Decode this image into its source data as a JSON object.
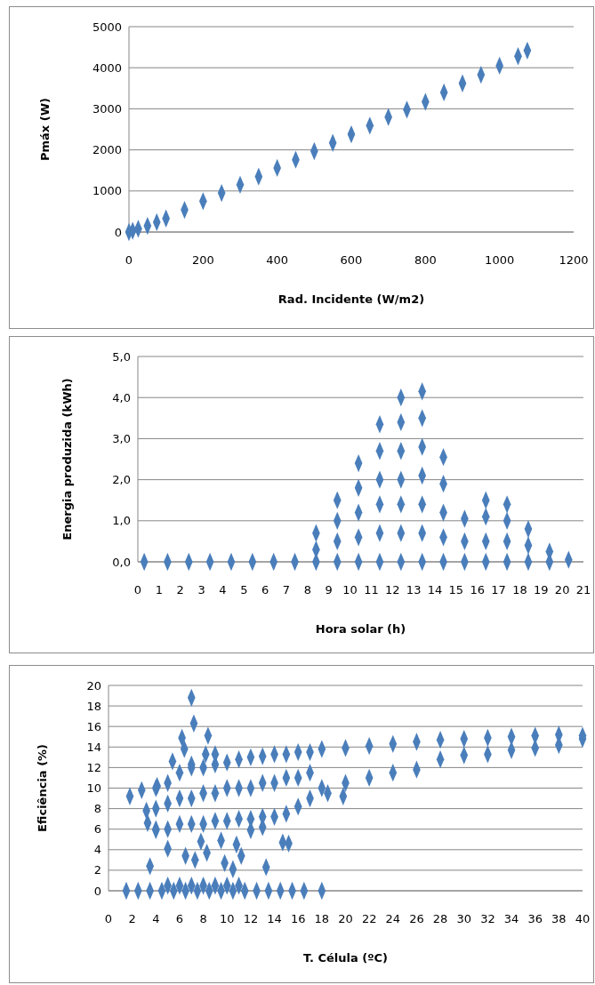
{
  "chart_data": [
    {
      "type": "scatter",
      "xlabel": "Rad. Incidente (W/m2)",
      "ylabel": "Pmáx (W)",
      "xlim": [
        0,
        1200
      ],
      "ylim": [
        0,
        5000
      ],
      "xticks": [
        0,
        200,
        400,
        600,
        800,
        1000,
        1200
      ],
      "yticks": [
        0,
        1000,
        2000,
        3000,
        4000,
        5000
      ],
      "grid": "y",
      "marker": "diamond",
      "series": [
        {
          "color": "#4a7ebb",
          "x": [
            0,
            10,
            25,
            50,
            75,
            100,
            150,
            200,
            250,
            300,
            350,
            400,
            450,
            500,
            550,
            600,
            650,
            700,
            750,
            800,
            850,
            900,
            950,
            1000,
            1050,
            1075
          ],
          "values": [
            0,
            30,
            80,
            150,
            240,
            330,
            540,
            750,
            950,
            1150,
            1350,
            1560,
            1760,
            1970,
            2170,
            2380,
            2590,
            2800,
            2980,
            3170,
            3400,
            3620,
            3830,
            4050,
            4280,
            4420
          ]
        }
      ]
    },
    {
      "type": "scatter",
      "xlabel": "Hora solar  (h)",
      "ylabel": "Energia produzida  (kWh)",
      "xlim": [
        0,
        21
      ],
      "ylim": [
        0,
        5
      ],
      "xticks": [
        0,
        1,
        2,
        3,
        4,
        5,
        6,
        7,
        8,
        9,
        10,
        11,
        12,
        13,
        14,
        15,
        16,
        17,
        18,
        19,
        20,
        21
      ],
      "yticks": [
        {
          "value": 0,
          "label": "0,0"
        },
        {
          "value": 1,
          "label": "1,0"
        },
        {
          "value": 2,
          "label": "2,0"
        },
        {
          "value": 3,
          "label": "3,0"
        },
        {
          "value": 4,
          "label": "4,0"
        },
        {
          "value": 5,
          "label": "5,0"
        }
      ],
      "grid": "y",
      "marker": "diamond",
      "series": [
        {
          "color": "#4a7ebb",
          "x": [
            0.3,
            1.4,
            2.4,
            3.4,
            4.4,
            5.4,
            6.4,
            7.4,
            8.4,
            8.4,
            8.4,
            9.4,
            9.4,
            9.4,
            9.4,
            10.4,
            10.4,
            10.4,
            10.4,
            10.4,
            11.4,
            11.4,
            11.4,
            11.4,
            11.4,
            11.4,
            12.4,
            12.4,
            12.4,
            12.4,
            12.4,
            12.4,
            12.4,
            13.4,
            13.4,
            13.4,
            13.4,
            13.4,
            13.4,
            13.4,
            14.4,
            14.4,
            14.4,
            14.4,
            14.4,
            15.4,
            15.4,
            15.4,
            16.4,
            16.4,
            16.4,
            16.4,
            17.4,
            17.4,
            17.4,
            17.4,
            18.4,
            18.4,
            18.4,
            19.4,
            19.4,
            20.3
          ],
          "values": [
            0,
            0,
            0,
            0,
            0,
            0,
            0,
            0,
            0,
            0.3,
            0.7,
            0,
            0.5,
            1,
            1.5,
            0,
            0.6,
            1.2,
            1.8,
            2.4,
            0,
            0.7,
            1.4,
            2,
            2.7,
            3.35,
            0,
            0.7,
            1.4,
            2,
            2.7,
            3.4,
            4,
            0,
            0.7,
            1.4,
            2.1,
            2.8,
            3.5,
            4.15,
            0,
            0.6,
            1.2,
            1.9,
            2.55,
            0,
            0.5,
            1.05,
            0,
            0.5,
            1.1,
            1.5,
            0,
            0.5,
            1,
            1.4,
            0,
            0.4,
            0.8,
            0,
            0.25,
            0.05
          ]
        }
      ]
    },
    {
      "type": "scatter",
      "xlabel": "T. Célula (ºC)",
      "ylabel": "Eficiência  (%)",
      "xlim": [
        0,
        40
      ],
      "ylim": [
        0,
        20
      ],
      "xticks": [
        0,
        2,
        4,
        6,
        8,
        10,
        12,
        14,
        16,
        18,
        20,
        22,
        24,
        26,
        28,
        30,
        32,
        34,
        36,
        38,
        40
      ],
      "yticks": [
        0,
        2,
        4,
        6,
        8,
        10,
        12,
        14,
        16,
        18,
        20
      ],
      "grid": "y",
      "marker": "diamond",
      "series": [
        {
          "color": "#4a7ebb",
          "x": [
            1.5,
            2.5,
            3.5,
            4.5,
            5.5,
            6.5,
            7.5,
            8.5,
            9.5,
            10.5,
            11.5,
            12.5,
            13.5,
            14.5,
            15.5,
            16.5,
            18,
            5,
            6,
            7,
            8,
            9,
            10,
            11,
            7,
            7.2,
            8.4,
            6.2,
            6.4,
            8.2,
            9,
            5.4,
            7,
            1.8,
            2.8,
            3.2,
            3.3,
            3.5,
            4.1,
            4,
            5,
            6.5,
            7.3,
            7.8,
            8.3,
            9.5,
            9.8,
            10.5,
            10.8,
            11.2,
            12,
            13,
            13.3,
            14.7,
            15.2,
            19.8,
            18.5,
            4,
            4,
            4,
            5,
            5,
            5,
            6,
            6,
            6,
            7,
            7,
            7,
            8,
            8,
            8,
            9,
            9,
            9,
            10,
            10,
            10,
            11,
            11,
            11,
            12,
            12,
            12,
            13,
            13,
            13,
            14,
            14,
            14,
            15,
            15,
            15,
            16,
            16,
            16,
            17,
            17,
            17,
            18,
            18,
            20,
            20,
            22,
            22,
            24,
            24,
            26,
            26,
            28,
            28,
            30,
            30,
            32,
            32,
            34,
            34,
            36,
            36,
            38,
            38,
            40,
            40
          ],
          "values": [
            0,
            0,
            0,
            0,
            0,
            0,
            0,
            0,
            0,
            0,
            0,
            0,
            0,
            0,
            0,
            0,
            0,
            0.5,
            0.5,
            0.5,
            0.5,
            0.5,
            0.5,
            0.5,
            18.8,
            16.3,
            15.1,
            14.9,
            13.8,
            13.3,
            13.3,
            12.6,
            12.3,
            9.2,
            9.8,
            7.8,
            6.6,
            2.4,
            10.2,
            5.9,
            4.1,
            3.4,
            3,
            4.8,
            3.7,
            4.9,
            2.7,
            2.1,
            4.5,
            3.4,
            5.9,
            6.2,
            2.3,
            4.7,
            4.6,
            9.2,
            9.5,
            10,
            8,
            6,
            10.5,
            8.5,
            6,
            11.5,
            9,
            6.5,
            12,
            9,
            6.5,
            12,
            9.5,
            6.5,
            12.3,
            9.5,
            6.8,
            12.5,
            10,
            6.8,
            12.8,
            10,
            7,
            13,
            10,
            7,
            13.1,
            10.5,
            7.2,
            13.3,
            10.5,
            7.2,
            13.3,
            11,
            7.5,
            13.5,
            11,
            8.2,
            13.5,
            11.5,
            9,
            13.8,
            10,
            13.9,
            10.5,
            14.1,
            11,
            14.3,
            11.5,
            14.5,
            11.8,
            14.7,
            12.8,
            14.8,
            13.2,
            14.9,
            13.3,
            15,
            13.7,
            15.1,
            13.9,
            15.2,
            14.2,
            15.1,
            14.8
          ]
        }
      ]
    }
  ]
}
